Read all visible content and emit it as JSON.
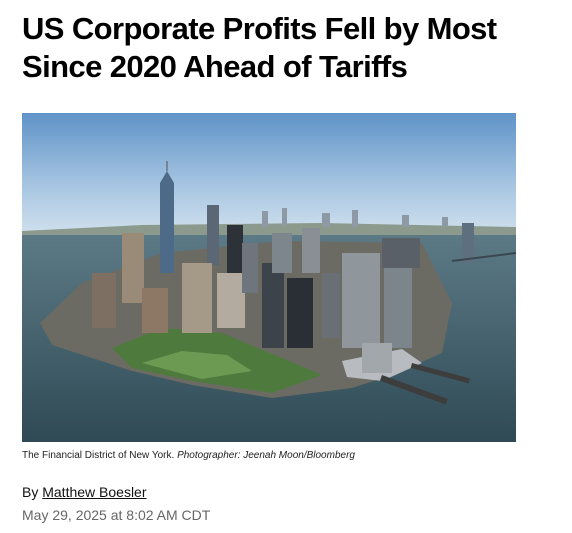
{
  "article": {
    "headline": "US Corporate Profits Fell by Most Since 2020 Ahead of Tariffs",
    "caption": "The Financial District of New York.",
    "photo_credit": "Photographer: Jeenah Moon/Bloomberg",
    "byline_prefix": "By",
    "author": "Matthew Boesler",
    "published": "May 29, 2025 at 8:02 AM CDT"
  }
}
